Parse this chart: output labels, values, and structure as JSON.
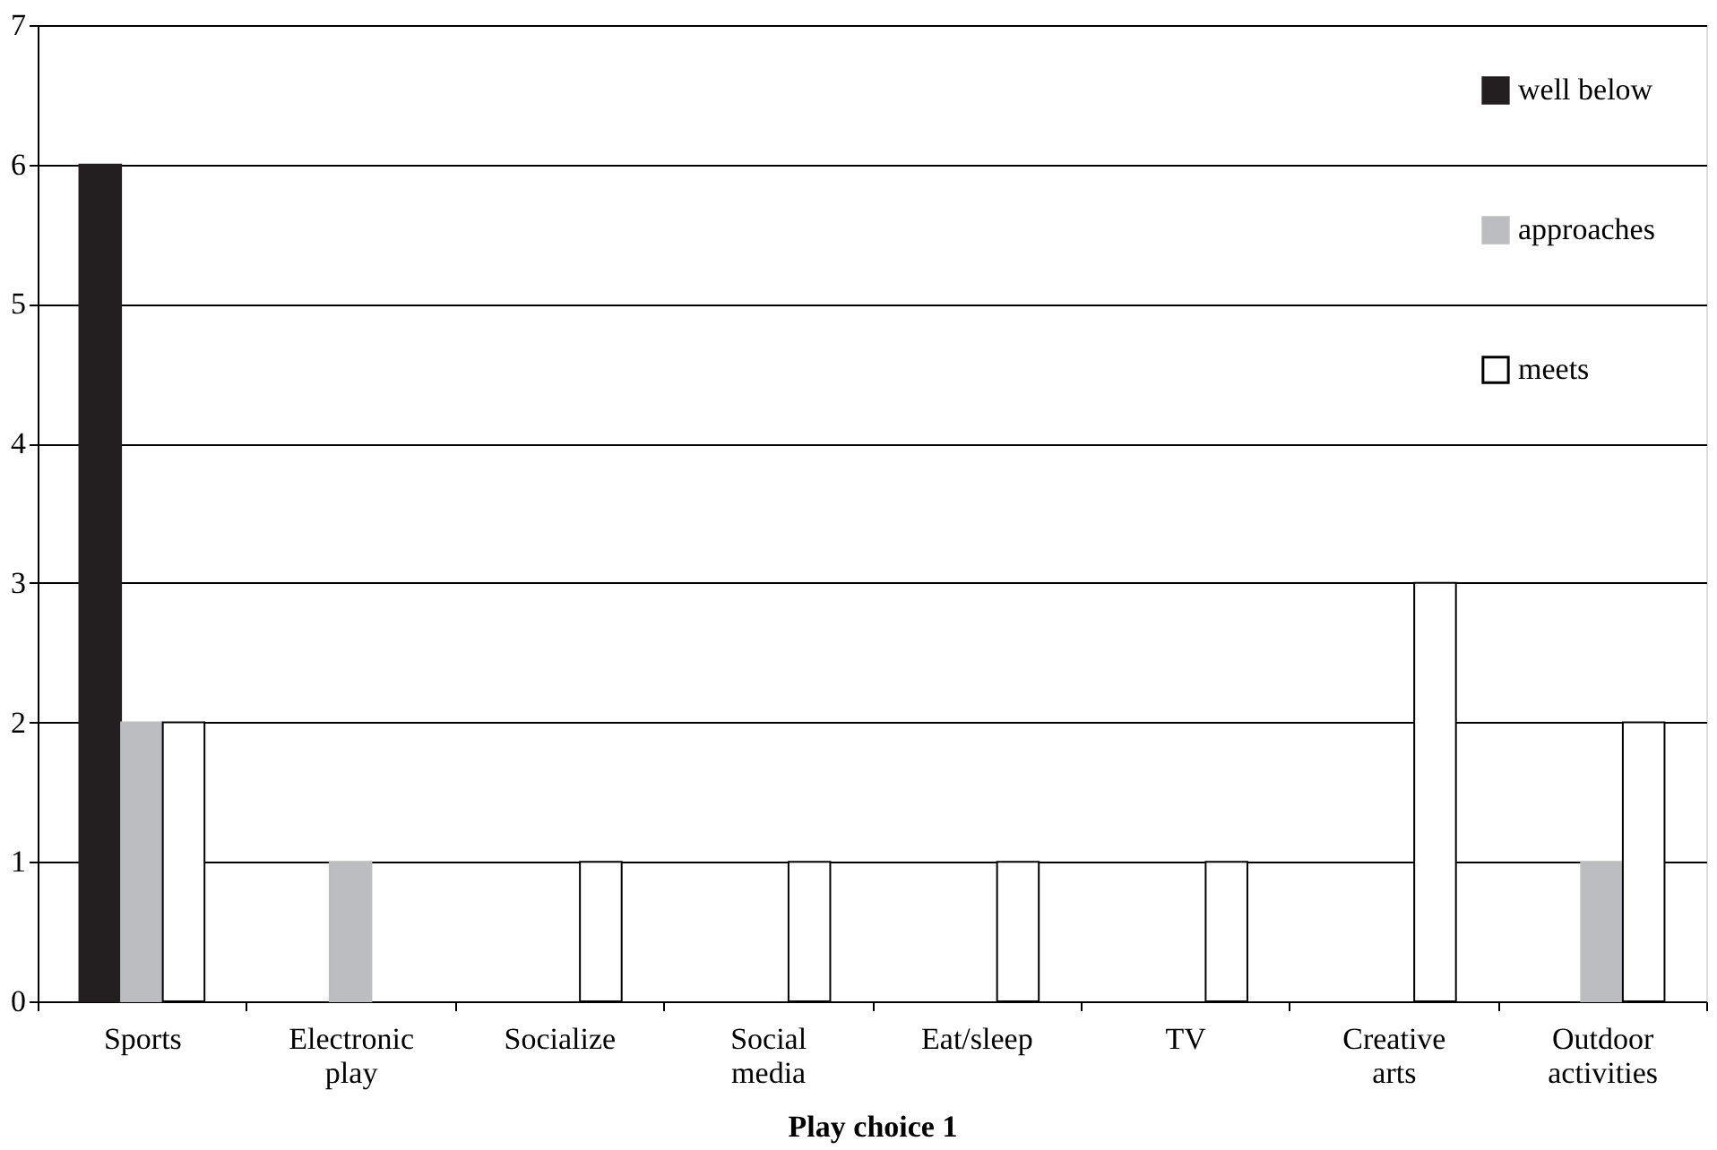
{
  "chart_data": {
    "type": "bar",
    "xlabel": "Play choice 1",
    "categories": [
      "Sports",
      "Electronic play",
      "Socialize",
      "Social media",
      "Eat/sleep",
      "TV",
      "Creative arts",
      "Outdoor activities"
    ],
    "series": [
      {
        "name": "well below",
        "color": "#231f20",
        "values": [
          6,
          null,
          null,
          null,
          null,
          null,
          null,
          null
        ]
      },
      {
        "name": "approaches",
        "color": "#bcbdc0",
        "values": [
          2,
          1,
          null,
          null,
          null,
          null,
          null,
          1
        ]
      },
      {
        "name": "meets",
        "color": "#ffffff",
        "values": [
          2,
          null,
          1,
          1,
          1,
          1,
          3,
          2
        ]
      }
    ],
    "ylim": [
      0,
      7
    ],
    "yticks": [
      0,
      1,
      2,
      3,
      4,
      5,
      6,
      7
    ],
    "grid": "y",
    "legend": "top right"
  }
}
